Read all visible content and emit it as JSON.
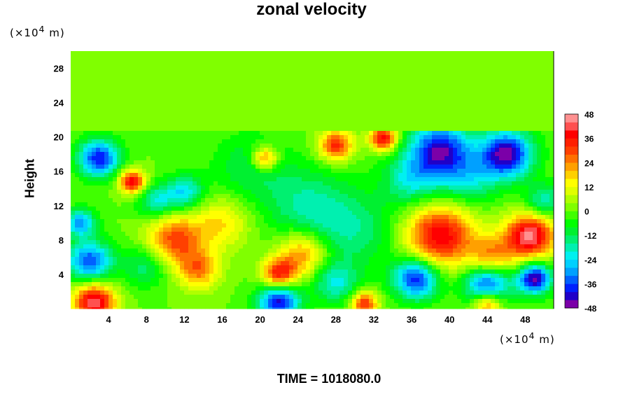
{
  "chart_data": {
    "type": "heatmap",
    "title": "zonal velocity",
    "ylabel": "Height",
    "y_unit_text": "(×10",
    "y_unit_exp": "4",
    "y_unit_tail": " m)",
    "x_unit_text": "(×10",
    "x_unit_exp": "4",
    "x_unit_tail": " m)",
    "footer": "TIME = 1018080.0",
    "xlim": [
      0,
      51
    ],
    "ylim": [
      0,
      30
    ],
    "x_ticks": [
      4,
      8,
      12,
      16,
      20,
      24,
      28,
      32,
      36,
      40,
      44,
      48
    ],
    "y_ticks": [
      4,
      8,
      12,
      16,
      20,
      24,
      28
    ],
    "colorbar": {
      "min": -48,
      "max": 48,
      "step": 4,
      "tick_values": [
        48,
        36,
        24,
        12,
        0,
        -12,
        -24,
        -36,
        -48
      ],
      "tick_labels": [
        "48",
        "36",
        "24",
        "12",
        "0",
        "-12",
        "-24",
        "-36",
        "-48"
      ],
      "colors": [
        "#7b00a8",
        "#2000c8",
        "#0020ff",
        "#0060ff",
        "#00a0ff",
        "#00d0ff",
        "#00f0f0",
        "#00f0b0",
        "#00f070",
        "#00f030",
        "#00ff00",
        "#40ff00",
        "#80ff00",
        "#b0ff00",
        "#e0ff00",
        "#ffff00",
        "#ffd000",
        "#ffa000",
        "#ff7000",
        "#ff4000",
        "#ff2000",
        "#ff0000",
        "#ff5050",
        "#ff9090"
      ]
    },
    "features": [
      {
        "x": 0,
        "y": 15,
        "v": 0,
        "r": 22
      },
      {
        "x": 3,
        "y": 17.5,
        "v": -40,
        "r": 2.2
      },
      {
        "x": 6.5,
        "y": 14.8,
        "v": 40,
        "r": 1.4
      },
      {
        "x": 2,
        "y": 5.5,
        "v": -36,
        "r": 2.4
      },
      {
        "x": 2.5,
        "y": 0.8,
        "v": 44,
        "r": 2.2
      },
      {
        "x": 1,
        "y": 10,
        "v": -30,
        "r": 1.6
      },
      {
        "x": 11,
        "y": 8,
        "v": 30,
        "r": 3
      },
      {
        "x": 13.5,
        "y": 4.5,
        "v": 24,
        "r": 2.2
      },
      {
        "x": 16,
        "y": 10,
        "v": 16,
        "r": 3
      },
      {
        "x": 12,
        "y": 13.5,
        "v": -24,
        "r": 2
      },
      {
        "x": 9,
        "y": 12.5,
        "v": -20,
        "r": 2
      },
      {
        "x": 19,
        "y": 16.5,
        "v": -12,
        "r": 4
      },
      {
        "x": 20.5,
        "y": 17.5,
        "v": 30,
        "r": 1.4
      },
      {
        "x": 22,
        "y": 4,
        "v": 36,
        "r": 1.8
      },
      {
        "x": 22,
        "y": 0.8,
        "v": -42,
        "r": 2.2
      },
      {
        "x": 24.5,
        "y": 6.5,
        "v": 26,
        "r": 2.6
      },
      {
        "x": 28,
        "y": 19,
        "v": 34,
        "r": 1.8
      },
      {
        "x": 31,
        "y": 0.6,
        "v": 34,
        "r": 1.4
      },
      {
        "x": 25,
        "y": 12,
        "v": -16,
        "r": 4.5
      },
      {
        "x": 30,
        "y": 9,
        "v": -14,
        "r": 4.5
      },
      {
        "x": 33,
        "y": 19.8,
        "v": 40,
        "r": 1.4
      },
      {
        "x": 36,
        "y": 15,
        "v": -20,
        "r": 3
      },
      {
        "x": 39,
        "y": 18.5,
        "v": -42,
        "r": 3.2
      },
      {
        "x": 46,
        "y": 18,
        "v": -46,
        "r": 2.8
      },
      {
        "x": 42,
        "y": 15,
        "v": -18,
        "r": 3
      },
      {
        "x": 39,
        "y": 8.5,
        "v": 40,
        "r": 3.6
      },
      {
        "x": 48.5,
        "y": 8.5,
        "v": 46,
        "r": 2.6
      },
      {
        "x": 44.5,
        "y": 6,
        "v": 24,
        "r": 2.4
      },
      {
        "x": 36.5,
        "y": 3.5,
        "v": -40,
        "r": 2.4
      },
      {
        "x": 44,
        "y": 2.8,
        "v": -40,
        "r": 2.4
      },
      {
        "x": 49,
        "y": 3.5,
        "v": -46,
        "r": 1.8
      },
      {
        "x": 44,
        "y": 0.6,
        "v": 32,
        "r": 1.6
      },
      {
        "x": 50,
        "y": 12.5,
        "v": -20,
        "r": 2
      },
      {
        "x": 8,
        "y": 5,
        "v": -16,
        "r": 2.4
      },
      {
        "x": 28,
        "y": 3,
        "v": -20,
        "r": 2.4
      }
    ]
  }
}
